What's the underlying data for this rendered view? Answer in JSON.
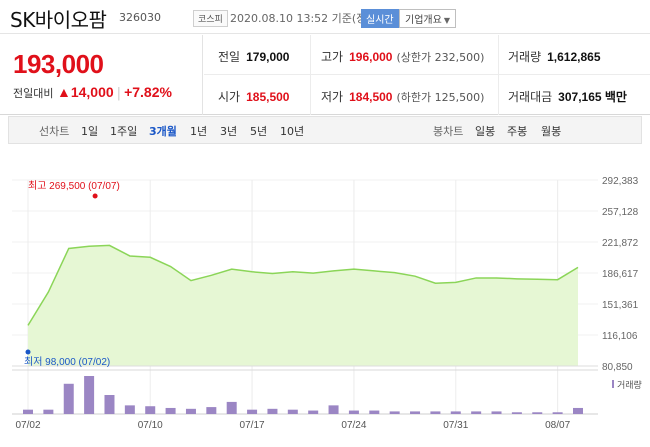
{
  "header": {
    "stock_name": "SK바이오팜",
    "stock_code": "326030",
    "market": "코스피",
    "timestamp": "2020.08.10 13:52 기준(장중)",
    "realtime_label": "실시간",
    "company_label": "기업개요"
  },
  "price": {
    "current": "193,000",
    "change_label": "전일대비",
    "change_value": "▲14,000",
    "change_pct": "+7.82%"
  },
  "stats": {
    "prev_close_label": "전일",
    "prev_close": "179,000",
    "high_label": "고가",
    "high": "196,000",
    "upper_limit": "(상한가 232,500)",
    "volume_label": "거래량",
    "volume": "1,612,865",
    "open_label": "시가",
    "open": "185,500",
    "low_label": "저가",
    "low": "184,500",
    "lower_limit": "(하한가 125,500)",
    "amount_label": "거래대금",
    "amount": "307,165 백만"
  },
  "tabs": {
    "line_label": "선차트",
    "line_periods": [
      "1일",
      "1주일",
      "3개월",
      "1년",
      "3년",
      "5년",
      "10년"
    ],
    "active": "3개월",
    "candle_label": "봉차트",
    "candle_periods": [
      "일봉",
      "주봉",
      "월봉"
    ]
  },
  "colors": {
    "up": "#e0101a",
    "down": "#1a57c7",
    "area_fill": "#e6f7d4",
    "area_line": "#8bd558",
    "volume_bar": "#9b86c4"
  },
  "chart_data": {
    "type": "area",
    "x": [
      "07/02",
      "07/03",
      "07/06",
      "07/07",
      "07/08",
      "07/09",
      "07/10",
      "07/13",
      "07/14",
      "07/15",
      "07/16",
      "07/17",
      "07/20",
      "07/21",
      "07/22",
      "07/23",
      "07/24",
      "07/27",
      "07/28",
      "07/29",
      "07/30",
      "07/31",
      "08/03",
      "08/04",
      "08/05",
      "08/06",
      "08/07",
      "08/10"
    ],
    "series": [
      {
        "values": [
          127000,
          165000,
          214500,
          217000,
          218000,
          206000,
          204500,
          194000,
          178000,
          184000,
          191000,
          188000,
          186000,
          188000,
          186500,
          189000,
          191000,
          189000,
          187000,
          183000,
          175000,
          176000,
          181000,
          181000,
          180000,
          179500,
          179000,
          193000
        ]
      }
    ],
    "volume_label": "거래량",
    "volume": [
      5,
      5,
      35,
      44,
      22,
      10,
      9,
      7,
      6,
      8,
      14,
      5,
      6,
      5,
      4,
      10,
      4,
      4,
      3,
      3,
      3,
      3,
      3,
      3,
      2,
      2,
      2,
      7
    ],
    "x_tick_labels": [
      "07/02",
      "07/10",
      "07/17",
      "07/24",
      "07/31",
      "08/07"
    ],
    "y_tick_labels": [
      "292,383",
      "257,128",
      "221,872",
      "186,617",
      "151,361",
      "116,106",
      "80,850"
    ],
    "ylim": [
      80850,
      292383
    ],
    "max_annotation": "최고 269,500 (07/07)",
    "min_annotation": "최저 98,000 (07/02)"
  }
}
